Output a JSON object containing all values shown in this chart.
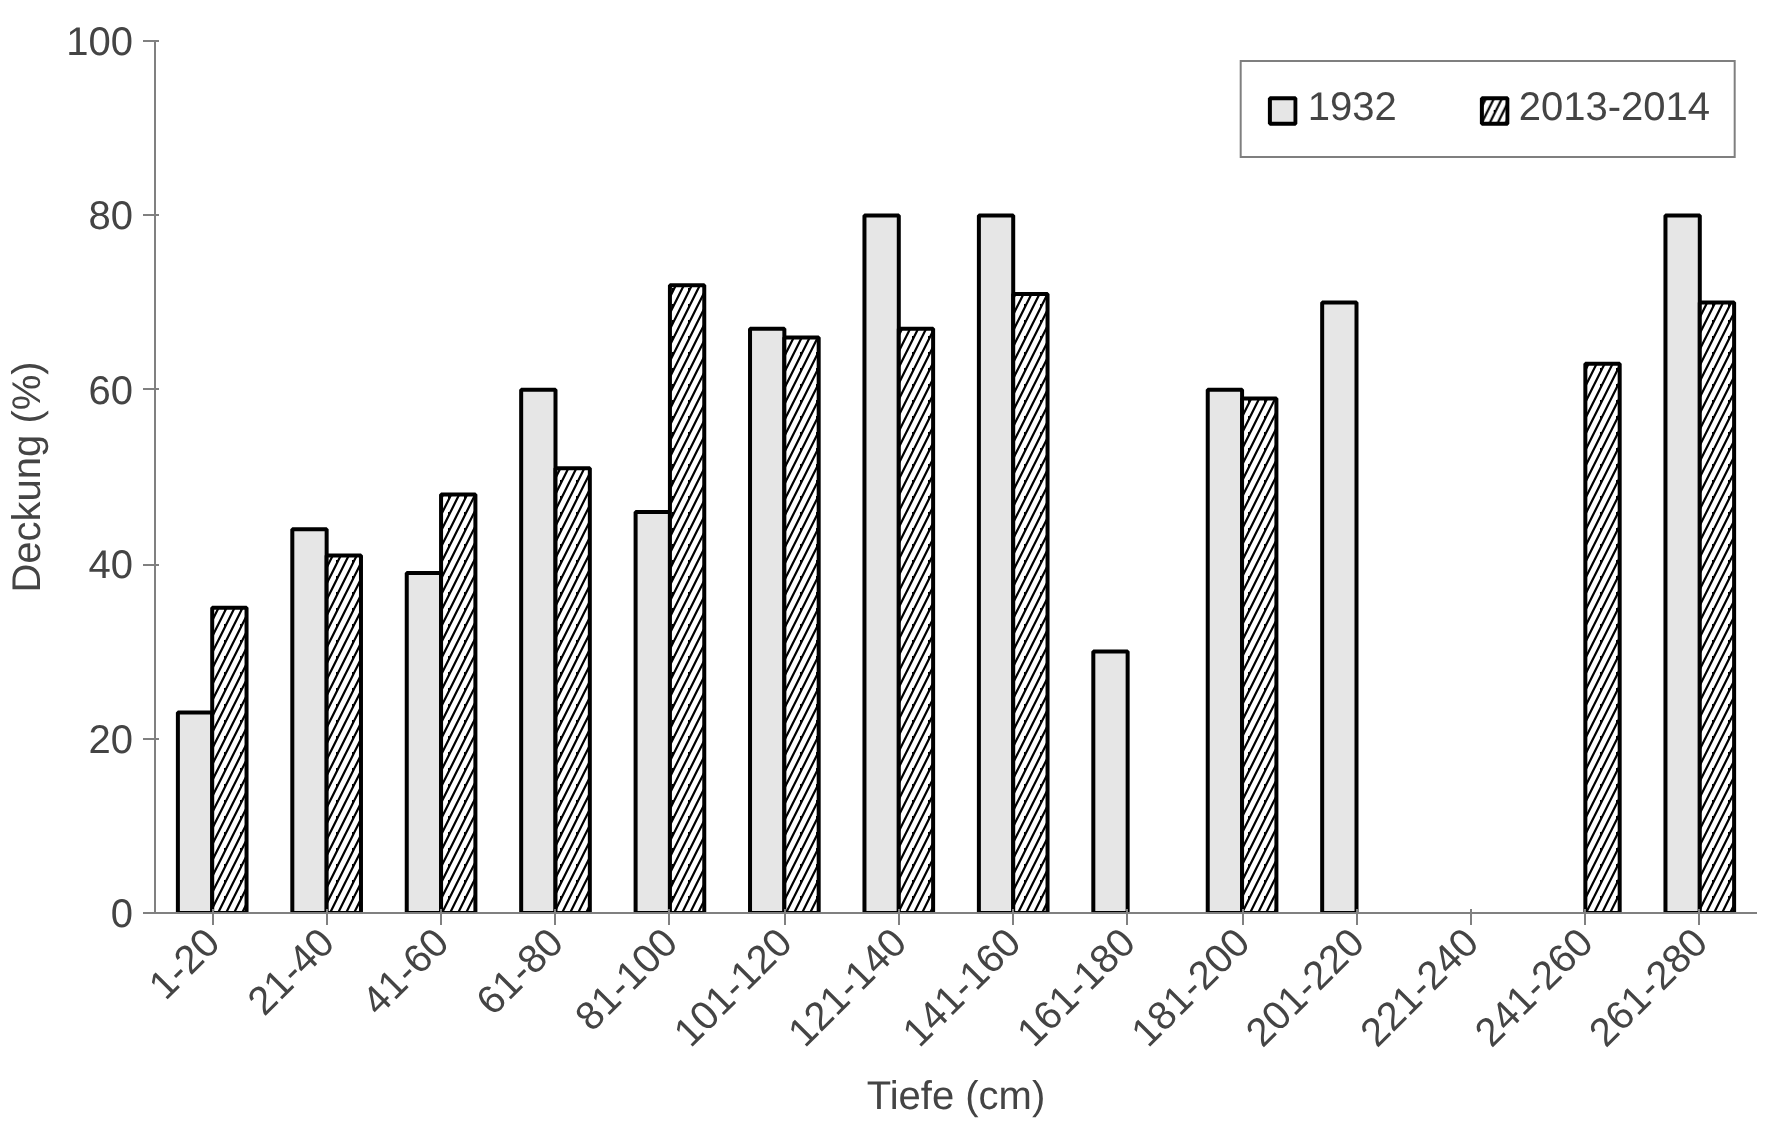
{
  "chart_data": {
    "type": "bar",
    "xlabel": "Tiefe (cm)",
    "ylabel": "Deckung (%)",
    "categories": [
      "1-20",
      "21-40",
      "41-60",
      "61-80",
      "81-100",
      "101-120",
      "121-140",
      "141-160",
      "161-180",
      "181-200",
      "201-220",
      "221-240",
      "241-260",
      "261-280"
    ],
    "series": [
      {
        "name": "1932",
        "color": "#e6e6e6",
        "values": [
          23,
          44,
          39,
          60,
          46,
          67,
          80,
          80,
          30,
          60,
          70,
          null,
          null,
          80
        ]
      },
      {
        "name": "2013-2014",
        "color": "#000000",
        "values": [
          35,
          41,
          48,
          51,
          72,
          66,
          67,
          71,
          null,
          59,
          null,
          null,
          63,
          70
        ]
      }
    ],
    "ylim": [
      0,
      100
    ],
    "yticks": [
      0,
      20,
      40,
      60,
      80,
      100
    ],
    "grid": false,
    "legend": "top right"
  }
}
